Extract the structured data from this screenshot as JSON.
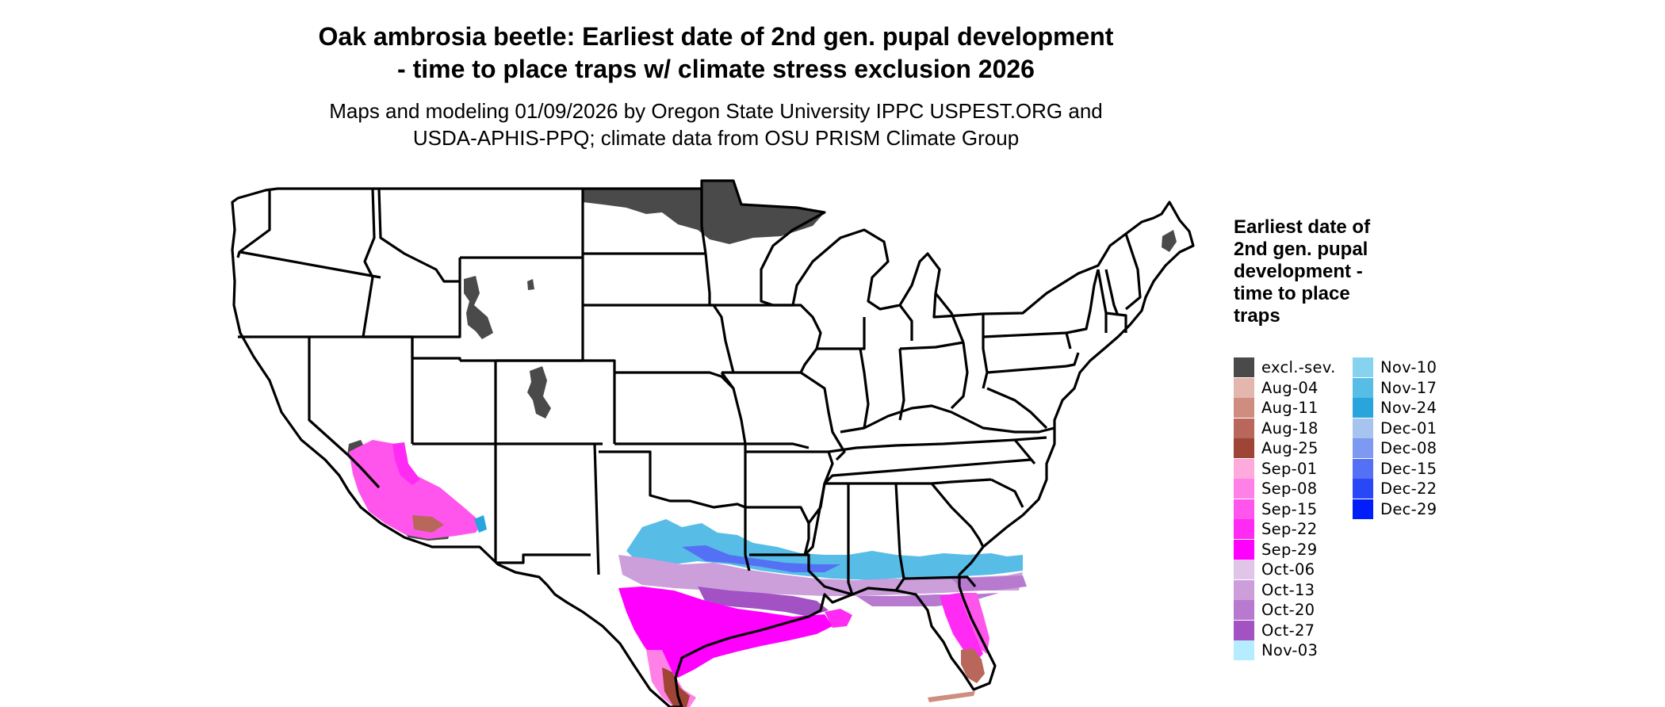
{
  "title_line1": "Oak ambrosia beetle: Earliest date of 2nd gen. pupal development",
  "title_line2": "- time to place traps w/ climate stress exclusion 2026",
  "subtitle_line1": "Maps and modeling 01/09/2026 by Oregon State University IPPC USPEST.ORG and",
  "subtitle_line2": "USDA-APHIS-PPQ; climate data from OSU PRISM Climate Group",
  "legend": {
    "title": "Earliest date of 2nd gen. pupal development - time to place traps",
    "column1": [
      {
        "label": "excl.-sev.",
        "color": "#4a4a4a"
      },
      {
        "label": "Aug-04",
        "color": "#e4b7ae"
      },
      {
        "label": "Aug-11",
        "color": "#cf8d80"
      },
      {
        "label": "Aug-18",
        "color": "#b9675a"
      },
      {
        "label": "Aug-25",
        "color": "#9e4535"
      },
      {
        "label": "Sep-01",
        "color": "#ffaadd"
      },
      {
        "label": "Sep-08",
        "color": "#ff80e6"
      },
      {
        "label": "Sep-15",
        "color": "#ff55ec"
      },
      {
        "label": "Sep-22",
        "color": "#ff2af3"
      },
      {
        "label": "Sep-29",
        "color": "#ff00ff"
      },
      {
        "label": "Oct-06",
        "color": "#e0c5e8"
      },
      {
        "label": "Oct-13",
        "color": "#cc9fdb"
      },
      {
        "label": "Oct-20",
        "color": "#b87acf"
      },
      {
        "label": "Oct-27",
        "color": "#a252c2"
      },
      {
        "label": "Nov-03",
        "color": "#b5ecff"
      }
    ],
    "column2": [
      {
        "label": "Nov-10",
        "color": "#86d3ef"
      },
      {
        "label": "Nov-17",
        "color": "#57bce6"
      },
      {
        "label": "Nov-24",
        "color": "#28a5dd"
      },
      {
        "label": "Dec-01",
        "color": "#a7c3f0"
      },
      {
        "label": "Dec-08",
        "color": "#7e99f2"
      },
      {
        "label": "Dec-15",
        "color": "#5470f4"
      },
      {
        "label": "Dec-22",
        "color": "#2a47f7"
      },
      {
        "label": "Dec-29",
        "color": "#001dfa"
      }
    ]
  }
}
